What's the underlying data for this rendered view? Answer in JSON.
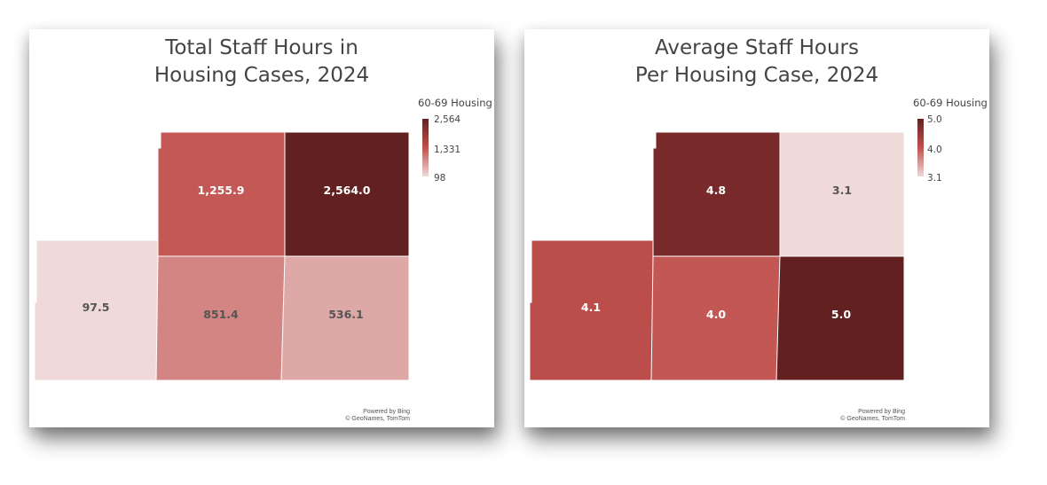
{
  "colors": {
    "low": "#efd9d9",
    "mid": "#c0504d",
    "high": "#632020"
  },
  "chart_data": [
    {
      "type": "choropleth-map",
      "title": [
        "Total Staff Hours in",
        "Housing Cases, 2024"
      ],
      "legend": {
        "title": "60-69 Housing",
        "max_label": "2,564",
        "mid_label": "1,331",
        "min_label": "98",
        "min": 97.5,
        "max": 2564.0
      },
      "regions": [
        {
          "id": "north-center",
          "value": 1255.9,
          "label": "1,255.9"
        },
        {
          "id": "north-east",
          "value": 2564.0,
          "label": "2,564.0"
        },
        {
          "id": "south-west",
          "value": 97.5,
          "label": "97.5"
        },
        {
          "id": "south-center",
          "value": 851.4,
          "label": "851.4"
        },
        {
          "id": "south-east",
          "value": 536.1,
          "label": "536.1"
        }
      ],
      "attribution": [
        "Powered by Bing",
        "© GeoNames, TomTom"
      ]
    },
    {
      "type": "choropleth-map",
      "title": [
        "Average Staff Hours",
        "Per Housing Case, 2024"
      ],
      "legend": {
        "title": "60-69 Housing",
        "max_label": "5.0",
        "mid_label": "4.0",
        "min_label": "3.1",
        "min": 3.1,
        "max": 5.0
      },
      "regions": [
        {
          "id": "north-center",
          "value": 4.8,
          "label": "4.8"
        },
        {
          "id": "north-east",
          "value": 3.1,
          "label": "3.1"
        },
        {
          "id": "south-west",
          "value": 4.1,
          "label": "4.1"
        },
        {
          "id": "south-center",
          "value": 4.0,
          "label": "4.0"
        },
        {
          "id": "south-east",
          "value": 5.0,
          "label": "5.0"
        }
      ],
      "attribution": [
        "Powered by Bing",
        "© GeoNames, TomTom"
      ]
    }
  ]
}
